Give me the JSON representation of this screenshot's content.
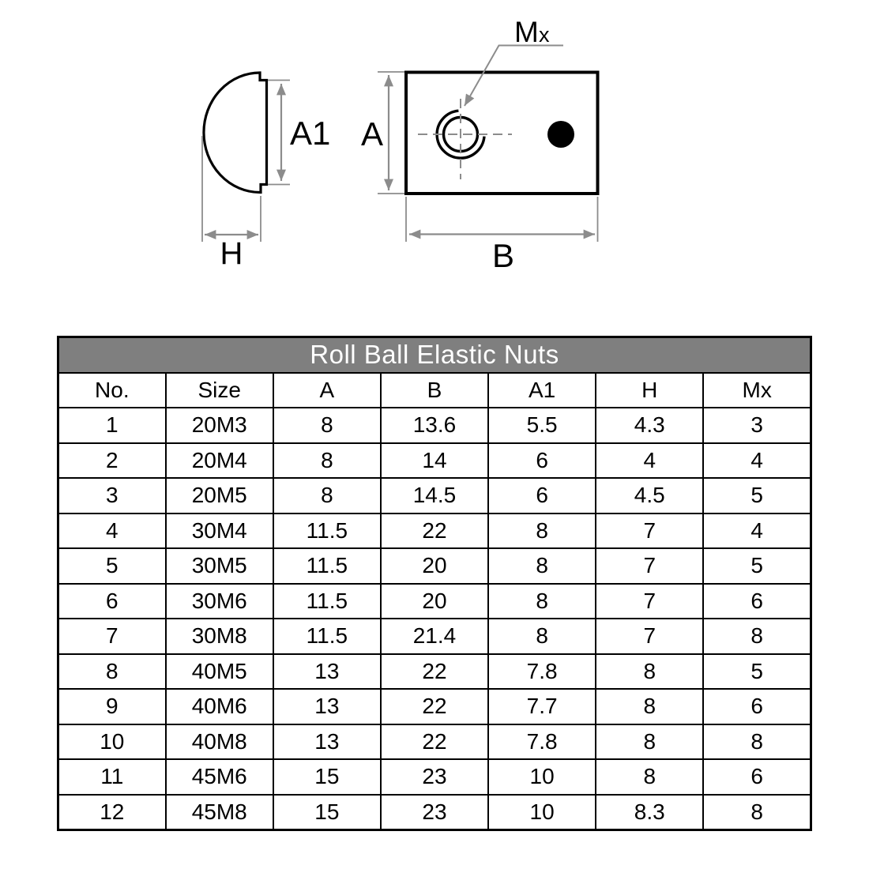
{
  "colors": {
    "title_bar": "#7f7f7f",
    "title_text": "#ffffff",
    "line": "#000000",
    "dimension": "#8c8c8c"
  },
  "drawing": {
    "side_view": {
      "flange_height_label": "A1",
      "depth_label": "H"
    },
    "front_view": {
      "height_label": "A",
      "width_label": "B",
      "thread_label_main": "M",
      "thread_label_sub": "x"
    }
  },
  "table": {
    "title": "Roll Ball Elastic Nuts",
    "columns": [
      "No.",
      "Size",
      "A",
      "B",
      "A1",
      "H",
      "Mx"
    ],
    "rows": [
      [
        "1",
        "20M3",
        "8",
        "13.6",
        "5.5",
        "4.3",
        "3"
      ],
      [
        "2",
        "20M4",
        "8",
        "14",
        "6",
        "4",
        "4"
      ],
      [
        "3",
        "20M5",
        "8",
        "14.5",
        "6",
        "4.5",
        "5"
      ],
      [
        "4",
        "30M4",
        "11.5",
        "22",
        "8",
        "7",
        "4"
      ],
      [
        "5",
        "30M5",
        "11.5",
        "20",
        "8",
        "7",
        "5"
      ],
      [
        "6",
        "30M6",
        "11.5",
        "20",
        "8",
        "7",
        "6"
      ],
      [
        "7",
        "30M8",
        "11.5",
        "21.4",
        "8",
        "7",
        "8"
      ],
      [
        "8",
        "40M5",
        "13",
        "22",
        "7.8",
        "8",
        "5"
      ],
      [
        "9",
        "40M6",
        "13",
        "22",
        "7.7",
        "8",
        "6"
      ],
      [
        "10",
        "40M8",
        "13",
        "22",
        "7.8",
        "8",
        "8"
      ],
      [
        "11",
        "45M6",
        "15",
        "23",
        "10",
        "8",
        "6"
      ],
      [
        "12",
        "45M8",
        "15",
        "23",
        "10",
        "8.3",
        "8"
      ]
    ]
  }
}
